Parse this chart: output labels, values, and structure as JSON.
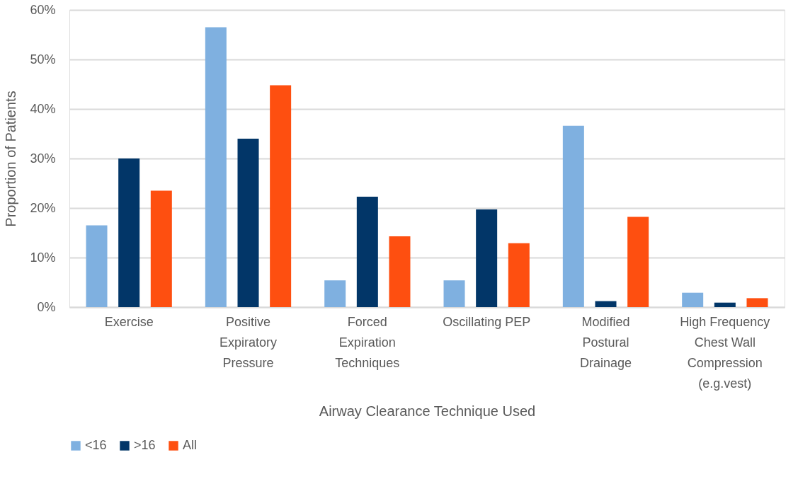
{
  "chart_data": {
    "type": "bar",
    "xlabel": "Airway Clearance Technique Used",
    "ylabel": "Proportion of Patients",
    "categories": [
      "Exercise",
      "Positive Expiratory Pressure",
      "Forced Expiration Techniques",
      "Oscillating PEP",
      "Modified Postural Drainage",
      "High Frequency Chest Wall Compression (e.g.vest)"
    ],
    "series": [
      {
        "name": "<16",
        "color": "#7fb0e0",
        "values": [
          16.5,
          56.5,
          5.4,
          5.4,
          36.6,
          2.9
        ]
      },
      {
        "name": ">16",
        "color": "#023668",
        "values": [
          30.0,
          34.0,
          22.3,
          19.7,
          1.2,
          0.9
        ]
      },
      {
        "name": "All",
        "color": "#fe4f10",
        "values": [
          23.5,
          44.8,
          14.3,
          12.9,
          18.2,
          1.8
        ]
      }
    ],
    "ylim": [
      0,
      60
    ],
    "yticks": [
      {
        "value": 0,
        "label": "0%"
      },
      {
        "value": 10,
        "label": "10%"
      },
      {
        "value": 20,
        "label": "20%"
      },
      {
        "value": 30,
        "label": "30%"
      },
      {
        "value": 40,
        "label": "40%"
      },
      {
        "value": 50,
        "label": "50%"
      },
      {
        "value": 60,
        "label": "60%"
      }
    ],
    "grid": "y",
    "legend": "bottom"
  }
}
